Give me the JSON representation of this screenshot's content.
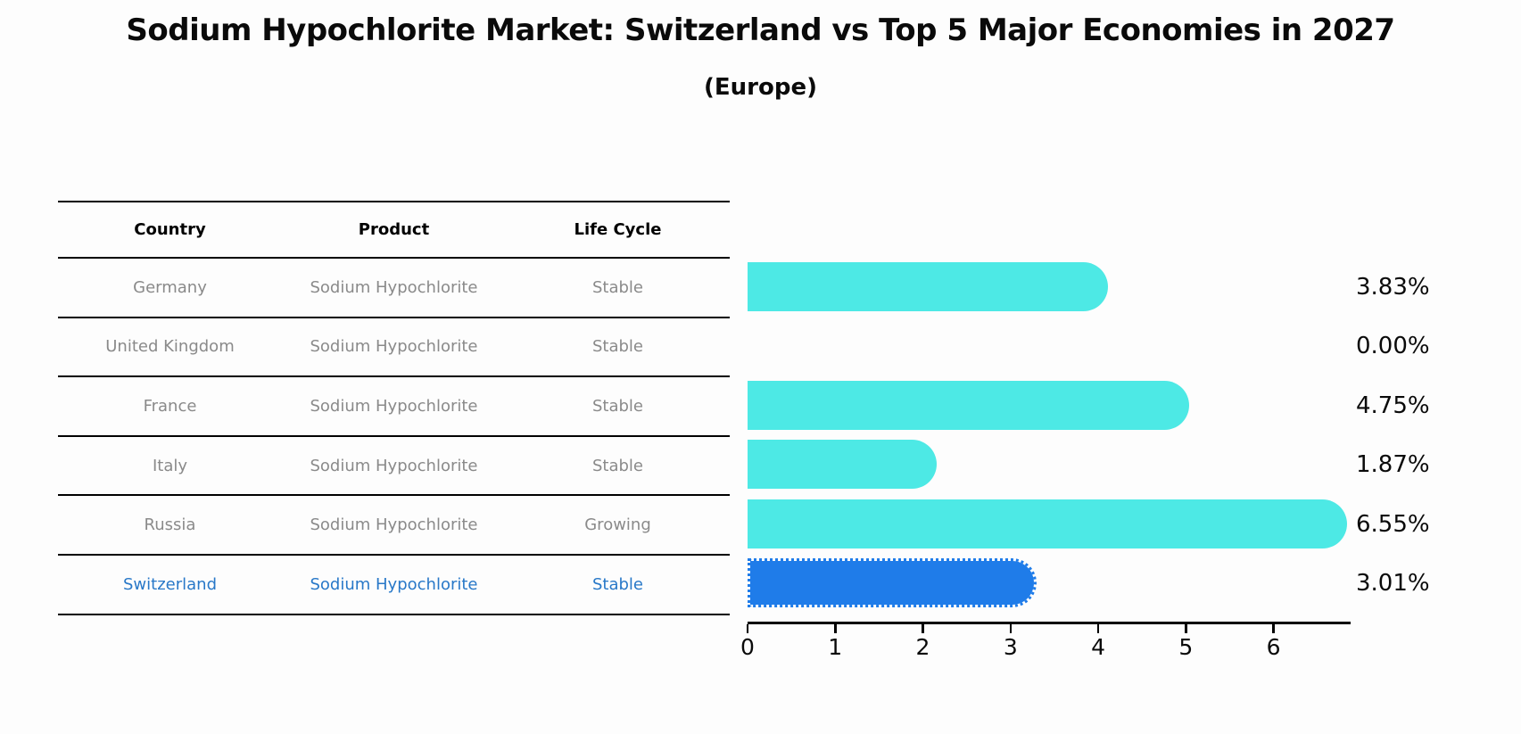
{
  "title": "Sodium Hypochlorite Market: Switzerland vs Top 5 Major Economies in 2027",
  "subtitle": "(Europe)",
  "table": {
    "headers": [
      "Country",
      "Product",
      "Life Cycle"
    ],
    "rows": [
      {
        "country": "Germany",
        "product": "Sodium Hypochlorite",
        "life_cycle": "Stable"
      },
      {
        "country": "United Kingdom",
        "product": "Sodium Hypochlorite",
        "life_cycle": "Stable"
      },
      {
        "country": "France",
        "product": "Sodium Hypochlorite",
        "life_cycle": "Stable"
      },
      {
        "country": "Italy",
        "product": "Sodium Hypochlorite",
        "life_cycle": "Stable"
      },
      {
        "country": "Russia",
        "product": "Sodium Hypochlorite",
        "life_cycle": "Growing"
      },
      {
        "country": "Switzerland",
        "product": "Sodium Hypochlorite",
        "life_cycle": "Stable"
      }
    ]
  },
  "chart_data": {
    "type": "bar",
    "orientation": "horizontal",
    "title": "Sodium Hypochlorite Market: Switzerland vs Top 5 Major Economies in 2027",
    "subtitle": "(Europe)",
    "categories": [
      "Germany",
      "United Kingdom",
      "France",
      "Italy",
      "Russia",
      "Switzerland"
    ],
    "values": [
      3.83,
      0.0,
      4.75,
      1.87,
      6.55,
      3.01
    ],
    "value_labels": [
      "3.83%",
      "0.00%",
      "4.75%",
      "1.87%",
      "6.55%",
      "3.01%"
    ],
    "xlabel": "",
    "ylabel": "",
    "xlim": [
      0,
      6.88
    ],
    "x_ticks": [
      0,
      1,
      2,
      3,
      4,
      5,
      6
    ],
    "grid": false,
    "legend": false,
    "highlight_index": 5,
    "highlight_category": "Switzerland"
  },
  "colors": {
    "bar": "#4DE9E5",
    "highlight_bar": "#1F7CE9",
    "highlight_text": "#2878C8",
    "table_text": "#8a8a8a",
    "axis_text": "#0a0a0a",
    "background": "#fdfdfd"
  }
}
